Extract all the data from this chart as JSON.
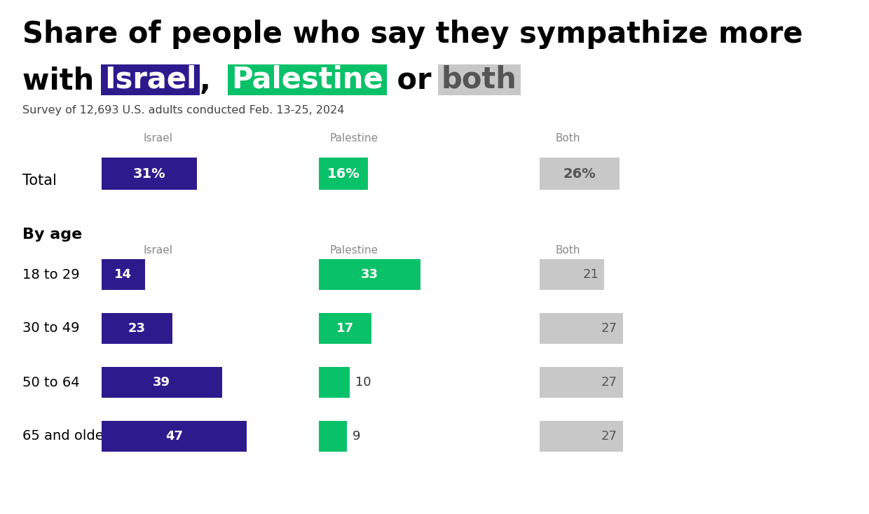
{
  "title_line1": "Share of people who say they sympathize more",
  "subtitle": "Survey of 12,693 U.S. adults conducted Feb. 13-25, 2024",
  "israel_color": "#2d1b8e",
  "palestine_color": "#09c168",
  "both_color": "#c8c8c8",
  "both_text_color": "#555555",
  "background_color": "#ffffff",
  "total": {
    "israel": 31,
    "palestine": 16,
    "both": 26
  },
  "age_groups": [
    "18 to 29",
    "30 to 49",
    "50 to 64",
    "65 and older"
  ],
  "age_data": {
    "18 to 29": {
      "israel": 14,
      "palestine": 33,
      "both": 21
    },
    "30 to 49": {
      "israel": 23,
      "palestine": 17,
      "both": 27
    },
    "50 to 64": {
      "israel": 39,
      "palestine": 10,
      "both": 27
    },
    "65 and older": {
      "israel": 47,
      "palestine": 9,
      "both": 27
    }
  },
  "israel_label": "Israel",
  "palestine_label": "Palestine",
  "both_label": "Both",
  "by_age_label": "By age",
  "total_label": "Total",
  "max_value": 50
}
